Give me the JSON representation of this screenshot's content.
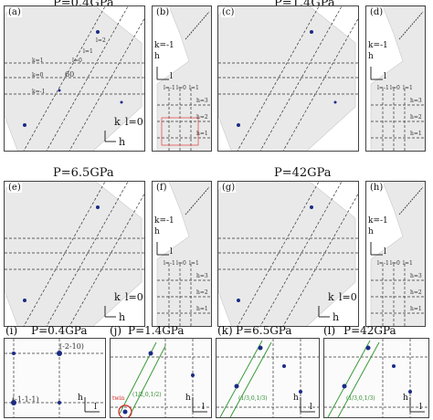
{
  "headers": {
    "top_left": "P=0.4GPa",
    "top_right": "P=1.4GPa",
    "mid_left": "P=6.5GPa",
    "mid_right": "P=42GPa"
  },
  "panels": {
    "a": {
      "label": "(a)",
      "k_label": "k",
      "l_label": "l=0",
      "h_label": "h",
      "angle": "60",
      "line_labels": [
        "k=1",
        "k=0",
        "k=-1",
        "l=2",
        "l=1",
        "l=0"
      ]
    },
    "b": {
      "label": "(b)",
      "k_label": "k=-1",
      "h_label": "h",
      "l_label": "l",
      "line_labels": [
        "l=-1",
        "l=0",
        "l=1",
        "h=3",
        "h=2",
        "h=1"
      ]
    },
    "c": {
      "label": "(c)"
    },
    "d": {
      "label": "(d)",
      "k_label": "k=-1",
      "h_label": "h",
      "l_label": "l",
      "line_labels": [
        "l=-1",
        "l=0",
        "l=1",
        "h=3",
        "h=2",
        "h=1"
      ]
    },
    "e": {
      "label": "(e)",
      "k_label": "k",
      "l_label": "l=0",
      "h_label": "h"
    },
    "f": {
      "label": "(f)",
      "k_label": "k=-1",
      "h_label": "h",
      "l_label": "l",
      "line_labels": [
        "l=-1",
        "l=0",
        "l=1",
        "h=3",
        "h=2",
        "h=1"
      ]
    },
    "g": {
      "label": "(g)",
      "k_label": "k",
      "l_label": "l=0",
      "h_label": "h"
    },
    "h": {
      "label": "(h)",
      "k_label": "k=-1",
      "h_label": "h",
      "l_label": "l",
      "line_labels": [
        "l=-1",
        "l=0",
        "l=1",
        "h=3",
        "h=2",
        "h=1"
      ]
    }
  },
  "bottom": [
    {
      "label": "(i)",
      "title": "P=0.4GPa",
      "annotations": [
        "(-2-10)",
        "(-1-1-1)"
      ],
      "h_label": "h",
      "l_label": "l"
    },
    {
      "label": "(j)",
      "title": "P=1.4GPa",
      "annotations": [
        "(1/2,0,1/2)",
        "twin"
      ],
      "h_label": "h",
      "l_label": "l"
    },
    {
      "label": "(k)",
      "title": "P=6.5GPa",
      "annotations": [
        "(1/3,0,1/3)"
      ],
      "h_label": "h",
      "l_label": "l"
    },
    {
      "label": "(l)",
      "title": "P=42GPa",
      "annotations": [
        "(1/3,0,1/3)"
      ],
      "h_label": "h",
      "l_label": "l"
    }
  ],
  "colors": {
    "spot": "#1a2b86",
    "green_line": "#3a9a3a",
    "red_circle": "#d22222",
    "red_box": "#e05050"
  }
}
